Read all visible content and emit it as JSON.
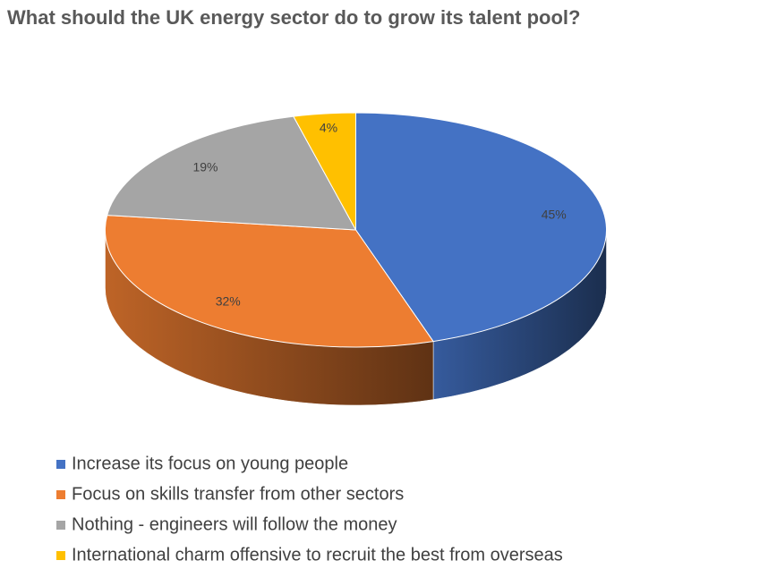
{
  "chart_data": {
    "type": "pie",
    "title": "What should the UK energy sector do to grow its talent pool?",
    "categories": [
      "Increase its focus on young people",
      "Focus on skills transfer from other sectors",
      "Nothing - engineers will follow the money",
      "International charm offensive to recruit the best from overseas"
    ],
    "values": [
      45,
      32,
      19,
      4
    ],
    "value_labels": [
      "45%",
      "32%",
      "19%",
      "4%"
    ],
    "colors": [
      "#4472c4",
      "#ed7d31",
      "#a5a5a5",
      "#ffc000"
    ],
    "legend": "bottom"
  }
}
